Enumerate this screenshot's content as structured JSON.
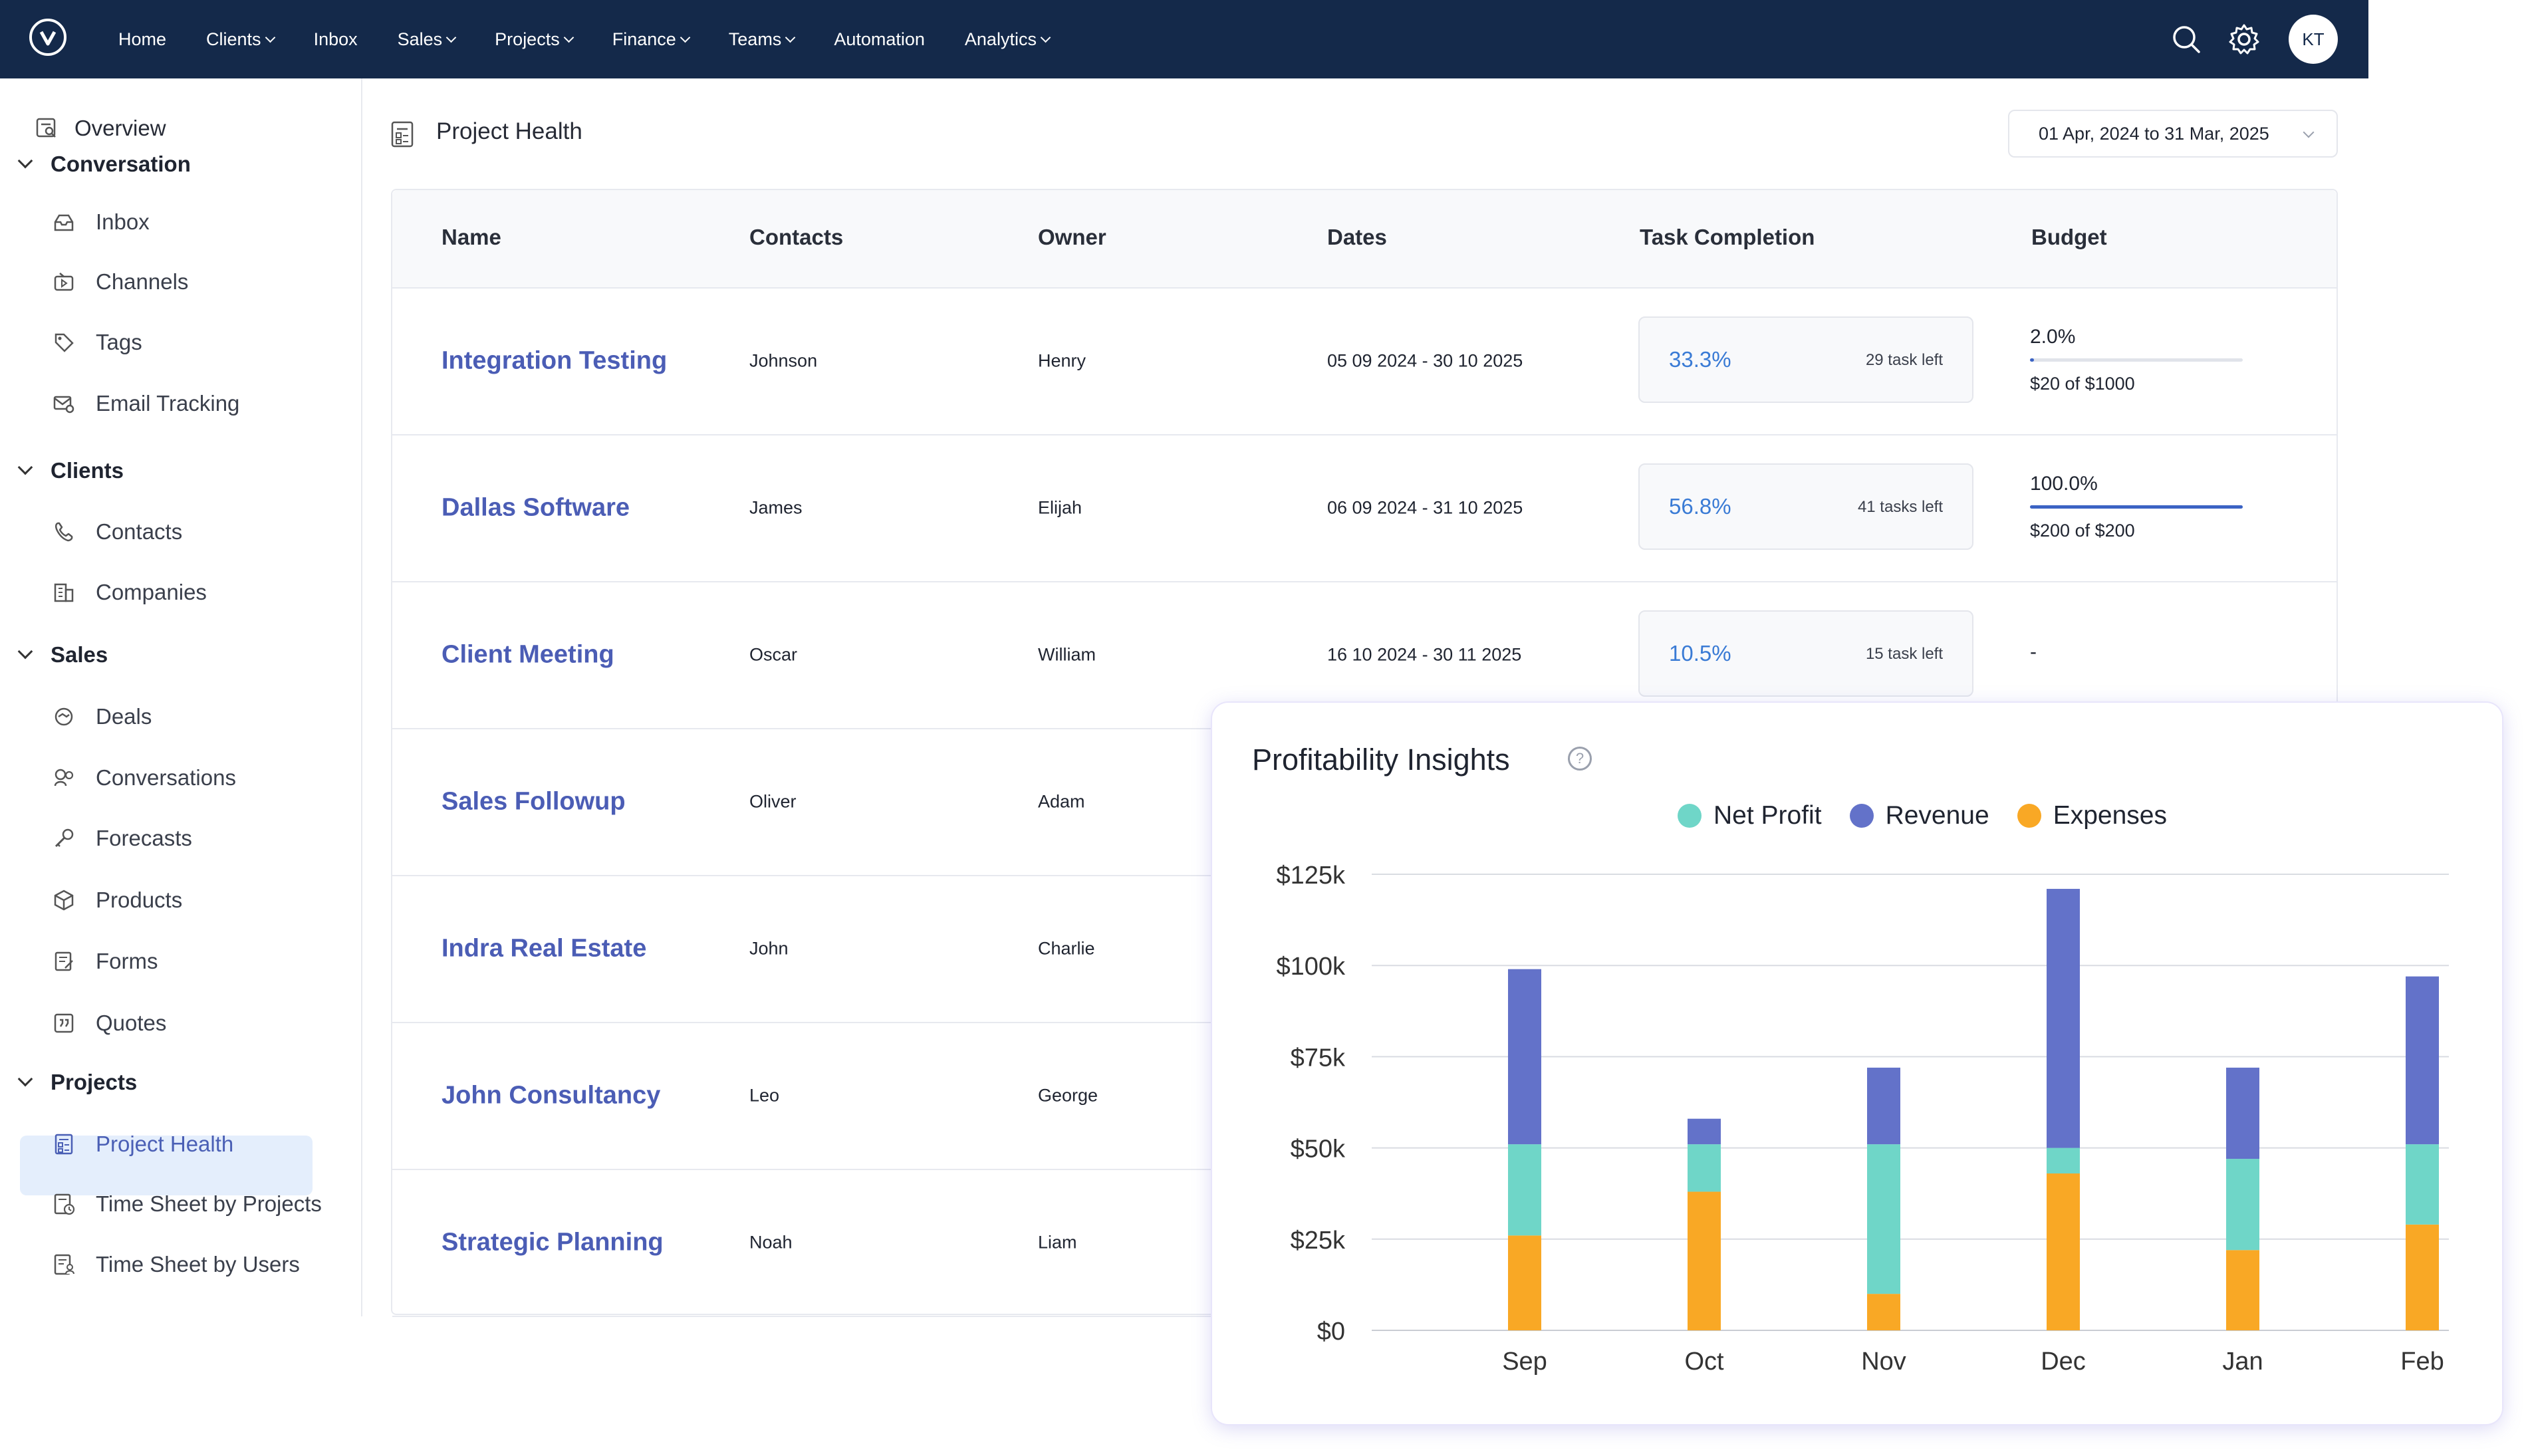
{
  "topbar": {
    "nav": [
      {
        "label": "Home",
        "dropdown": false
      },
      {
        "label": "Clients",
        "dropdown": true
      },
      {
        "label": "Inbox",
        "dropdown": false
      },
      {
        "label": "Sales",
        "dropdown": true
      },
      {
        "label": "Projects",
        "dropdown": true
      },
      {
        "label": "Finance",
        "dropdown": true
      },
      {
        "label": "Teams",
        "dropdown": true
      },
      {
        "label": "Automation",
        "dropdown": false
      },
      {
        "label": "Analytics",
        "dropdown": true
      }
    ],
    "avatar_initials": "KT",
    "icons": [
      "search-icon",
      "gear-icon"
    ]
  },
  "sidebar": {
    "overview": "Overview",
    "sections": [
      {
        "label": "Conversation",
        "items": [
          "Inbox",
          "Channels",
          "Tags",
          "Email Tracking"
        ]
      },
      {
        "label": "Clients",
        "items": [
          "Contacts",
          "Companies"
        ]
      },
      {
        "label": "Sales",
        "items": [
          "Deals",
          "Conversations",
          "Forecasts",
          "Products",
          "Forms",
          "Quotes"
        ]
      },
      {
        "label": "Projects",
        "items": [
          "Project Health",
          "Time Sheet by Projects",
          "Time Sheet by Users"
        ]
      }
    ],
    "active_item": "Project Health"
  },
  "page": {
    "title": "Project Health",
    "date_range": "01 Apr, 2024 to 31 Mar, 2025"
  },
  "table": {
    "headers": {
      "name": "Name",
      "contacts": "Contacts",
      "owner": "Owner",
      "dates": "Dates",
      "task": "Task Completion",
      "budget": "Budget"
    },
    "rows": [
      {
        "name": "Integration Testing",
        "contact": "Johnson",
        "owner": "Henry",
        "dates": "05 09 2024 - 30 10 2025",
        "task_pct": "33.3%",
        "task_left": "29 task left",
        "budget_pct": "2.0%",
        "budget_fill": 2.0,
        "budget_amt": "$20 of $1000"
      },
      {
        "name": "Dallas Software",
        "contact": "James",
        "owner": "Elijah",
        "dates": "06 09 2024 - 31 10 2025",
        "task_pct": "56.8%",
        "task_left": "41 tasks left",
        "budget_pct": "100.0%",
        "budget_fill": 100.0,
        "budget_amt": "$200 of $200"
      },
      {
        "name": "Client Meeting",
        "contact": "Oscar",
        "owner": "William",
        "dates": "16 10 2024 - 30 11 2025",
        "task_pct": "10.5%",
        "task_left": "15 task left",
        "budget_pct": "-",
        "budget_fill": null,
        "budget_amt": ""
      },
      {
        "name": "Sales Followup",
        "contact": "Oliver",
        "owner": "Adam"
      },
      {
        "name": "Indra Real Estate",
        "contact": "John",
        "owner": "Charlie"
      },
      {
        "name": "John Consultancy",
        "contact": "Leo",
        "owner": "George"
      },
      {
        "name": "Strategic Planning",
        "contact": "Noah",
        "owner": "Liam"
      }
    ]
  },
  "insights": {
    "title": "Profitability Insights",
    "help_icon": "?"
  },
  "chart_data": {
    "type": "bar",
    "stacked": true,
    "title": "Profitability Insights",
    "categories": [
      "Sep",
      "Oct",
      "Nov",
      "Dec",
      "Jan",
      "Feb"
    ],
    "series": [
      {
        "name": "Expenses",
        "color": "#f9a825",
        "values": [
          26,
          38,
          10,
          43,
          22,
          29
        ]
      },
      {
        "name": "Net Profit",
        "color": "#6fd6c8",
        "values": [
          25,
          13,
          41,
          7,
          25,
          22
        ]
      },
      {
        "name": "Revenue",
        "color": "#6372c9",
        "values": [
          48,
          7,
          21,
          71,
          25,
          46
        ]
      }
    ],
    "legend": [
      {
        "name": "Net Profit",
        "color": "#6fd6c8"
      },
      {
        "name": "Revenue",
        "color": "#6372c9"
      },
      {
        "name": "Expenses",
        "color": "#f9a825"
      }
    ],
    "ylim": [
      0,
      125
    ],
    "yticks": [
      {
        "value": 0,
        "label": "$0"
      },
      {
        "value": 25,
        "label": "$25k"
      },
      {
        "value": 50,
        "label": "$50k"
      },
      {
        "value": 75,
        "label": "$75k"
      },
      {
        "value": 100,
        "label": "$100k"
      },
      {
        "value": 125,
        "label": "$125k"
      }
    ],
    "xlabel": "",
    "ylabel": "",
    "grid": true,
    "legend_position": "top"
  }
}
